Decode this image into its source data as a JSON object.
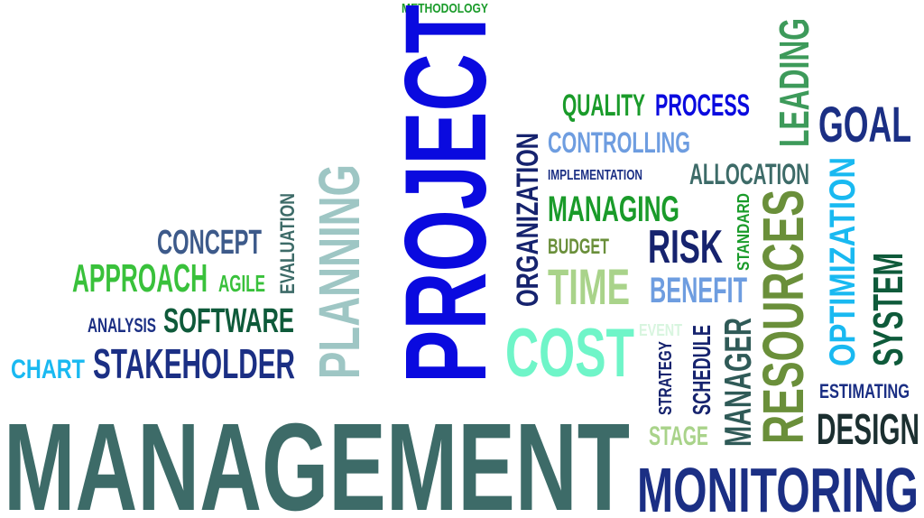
{
  "colors": {
    "blue": "#0a0adf",
    "navy": "#1b2f84",
    "dark_navy": "#16236e",
    "slate_blue": "#3d5a8a",
    "teal": "#3d6b68",
    "dark_teal": "#2f5a57",
    "green": "#1a9b2a",
    "bright_green": "#39c13b",
    "mint": "#6ff5c8",
    "light_green": "#a9d38a",
    "olive": "#6a8f3a",
    "sky": "#19b9f1",
    "light_blue": "#6e9de0",
    "dark_green": "#0e5a3a",
    "pale_blue": "#9ec6c4"
  },
  "words": {
    "methodology": "METHODOLOGY",
    "project": "PROJECT",
    "quality": "QUALITY",
    "process": "PROCESS",
    "leading": "LEADING",
    "goal": "GOAL",
    "controlling": "CONTROLLING",
    "implementation": "IMPLEMENTATION",
    "allocation": "ALLOCATION",
    "organization": "ORGANIZATION",
    "managing": "MANAGING",
    "standard": "STANDARD",
    "resources": "RESOURCES",
    "optimization": "OPTIMIZATION",
    "system": "SYSTEM",
    "risk": "RISK",
    "budget": "BUDGET",
    "time": "TIME",
    "benefit": "BENEFIT",
    "planning": "PLANNING",
    "evaluation": "EVALUATION",
    "concept": "CONCEPT",
    "approach": "APPROACH",
    "agile": "AGILE",
    "analysis": "ANALYSIS",
    "software": "SOFTWARE",
    "chart": "CHART",
    "stakeholder": "STAKEHOLDER",
    "cost": "COST",
    "event": "EVENT",
    "strategy": "STRATEGY",
    "schedule": "SCHEDULE",
    "manager": "MANAGER",
    "stage": "STAGE",
    "estimating": "ESTIMATING",
    "design": "DESIGN",
    "management": "MANAGEMENT",
    "monitoring": "MONITORING"
  }
}
